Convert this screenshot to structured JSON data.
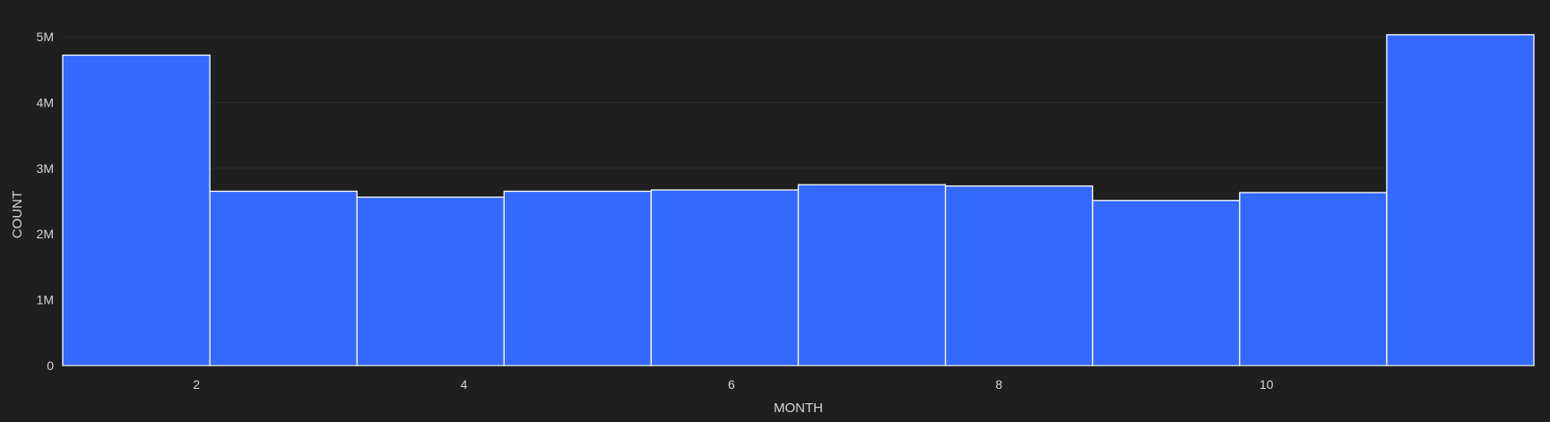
{
  "chart_data": {
    "type": "bar",
    "subtype": "histogram",
    "xlabel": "MONTH",
    "ylabel": "COUNT",
    "xlim": [
      1,
      12
    ],
    "ylim": [
      0,
      5000000
    ],
    "x_ticks": [
      2,
      4,
      6,
      8,
      10
    ],
    "x_tick_labels": [
      "2",
      "4",
      "6",
      "8",
      "10"
    ],
    "y_ticks": [
      0,
      1000000,
      2000000,
      3000000,
      4000000,
      5000000
    ],
    "y_tick_labels": [
      "0",
      "1M",
      "2M",
      "3M",
      "4M",
      "5M"
    ],
    "bins": [
      {
        "start": 1.0,
        "end": 2.1,
        "value": 4720000
      },
      {
        "start": 2.1,
        "end": 3.2,
        "value": 2650000
      },
      {
        "start": 3.2,
        "end": 4.3,
        "value": 2560000
      },
      {
        "start": 4.3,
        "end": 5.4,
        "value": 2650000
      },
      {
        "start": 5.4,
        "end": 6.5,
        "value": 2670000
      },
      {
        "start": 6.5,
        "end": 7.6,
        "value": 2750000
      },
      {
        "start": 7.6,
        "end": 8.7,
        "value": 2730000
      },
      {
        "start": 8.7,
        "end": 9.8,
        "value": 2510000
      },
      {
        "start": 9.8,
        "end": 10.9,
        "value": 2630000
      },
      {
        "start": 10.9,
        "end": 12.0,
        "value": 5030000
      }
    ],
    "grid": true,
    "legend": "none",
    "bar_color": "#3369ff",
    "bar_edge_color": "#ffffff"
  }
}
